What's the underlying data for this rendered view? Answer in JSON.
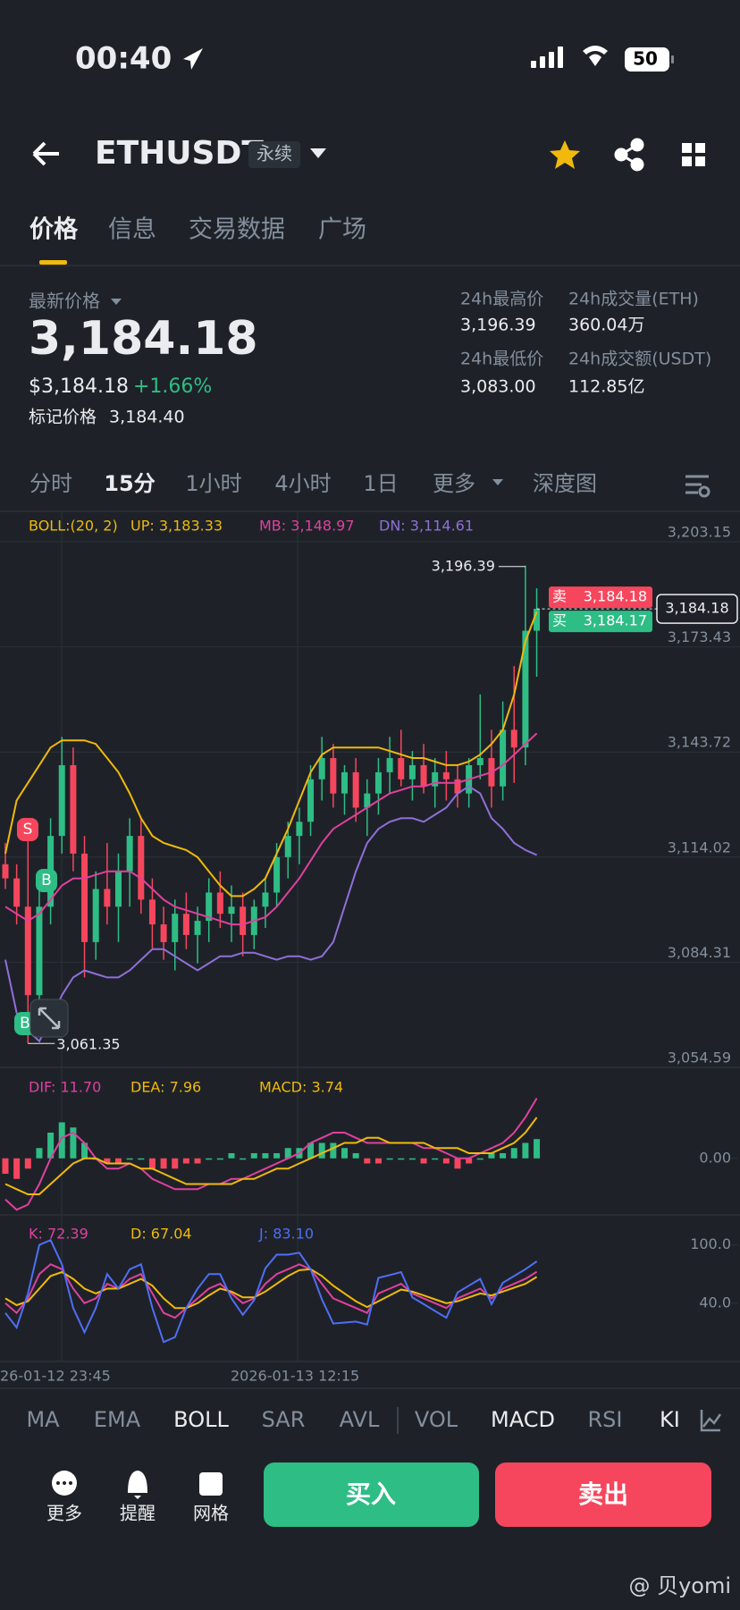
{
  "status": {
    "time": "00:40",
    "battery": "50"
  },
  "header": {
    "symbol": "ETHUSDT",
    "badge": "永续"
  },
  "tabs": [
    "价格",
    "信息",
    "交易数据",
    "广场"
  ],
  "price": {
    "label": "最新价格",
    "last": "3,184.18",
    "usd": "$3,184.18",
    "change": "+1.66%",
    "mark_label": "标记价格",
    "mark": "3,184.40"
  },
  "stats": [
    {
      "label": "24h最高价",
      "value": "3,196.39"
    },
    {
      "label": "24h成交量(ETH)",
      "value": "360.04万"
    },
    {
      "label": "24h最低价",
      "value": "3,083.00"
    },
    {
      "label": "24h成交额(USDT)",
      "value": "112.85亿"
    }
  ],
  "intervals": [
    "分时",
    "15分",
    "1小时",
    "4小时",
    "1日",
    "更多",
    "深度图"
  ],
  "chart_data": [
    {
      "type": "candlestick",
      "legend": "BOLL:(20, 2)",
      "up_color": "#2ebd85",
      "down_color": "#f6465d",
      "ylim": [
        3054.59,
        3203.15
      ],
      "yticks": [
        {
          "value": 3203.15,
          "label": "3,203.15"
        },
        {
          "value": 3173.43,
          "label": "3,173.43"
        },
        {
          "value": 3143.72,
          "label": "3,143.72"
        },
        {
          "value": 3114.02,
          "label": "3,114.02"
        },
        {
          "value": 3084.31,
          "label": "3,084.31"
        },
        {
          "value": 3054.59,
          "label": "3,054.59"
        }
      ],
      "candles": [
        [
          3112,
          3118,
          3105,
          3108
        ],
        [
          3108,
          3112,
          3095,
          3100
        ],
        [
          3100,
          3120,
          3061.35,
          3075
        ],
        [
          3075,
          3105,
          3070,
          3100
        ],
        [
          3100,
          3125,
          3095,
          3120
        ],
        [
          3120,
          3148,
          3115,
          3140
        ],
        [
          3140,
          3145,
          3110,
          3115
        ],
        [
          3115,
          3120,
          3080,
          3090
        ],
        [
          3090,
          3110,
          3085,
          3105
        ],
        [
          3105,
          3118,
          3095,
          3100
        ],
        [
          3100,
          3115,
          3090,
          3110
        ],
        [
          3110,
          3125,
          3100,
          3120
        ],
        [
          3120,
          3125,
          3098,
          3102
        ],
        [
          3102,
          3108,
          3088,
          3095
        ],
        [
          3095,
          3100,
          3085,
          3090
        ],
        [
          3090,
          3102,
          3082,
          3098
        ],
        [
          3098,
          3104,
          3088,
          3092
        ],
        [
          3092,
          3100,
          3084,
          3096
        ],
        [
          3096,
          3108,
          3090,
          3104
        ],
        [
          3104,
          3110,
          3094,
          3098
        ],
        [
          3098,
          3106,
          3090,
          3100
        ],
        [
          3100,
          3104,
          3086,
          3092
        ],
        [
          3092,
          3102,
          3088,
          3100
        ],
        [
          3100,
          3108,
          3094,
          3104
        ],
        [
          3104,
          3118,
          3100,
          3114
        ],
        [
          3114,
          3124,
          3108,
          3120
        ],
        [
          3120,
          3128,
          3112,
          3124
        ],
        [
          3124,
          3140,
          3120,
          3136
        ],
        [
          3136,
          3148,
          3130,
          3142
        ],
        [
          3142,
          3146,
          3128,
          3132
        ],
        [
          3132,
          3140,
          3126,
          3138
        ],
        [
          3138,
          3142,
          3124,
          3128
        ],
        [
          3128,
          3136,
          3120,
          3132
        ],
        [
          3132,
          3142,
          3126,
          3138
        ],
        [
          3138,
          3148,
          3132,
          3142
        ],
        [
          3142,
          3150,
          3134,
          3136
        ],
        [
          3136,
          3144,
          3130,
          3140
        ],
        [
          3140,
          3146,
          3132,
          3134
        ],
        [
          3134,
          3142,
          3128,
          3138
        ],
        [
          3138,
          3144,
          3130,
          3136
        ],
        [
          3136,
          3140,
          3128,
          3132
        ],
        [
          3132,
          3142,
          3128,
          3140
        ],
        [
          3140,
          3160,
          3136,
          3142
        ],
        [
          3142,
          3150,
          3128,
          3134
        ],
        [
          3134,
          3158,
          3130,
          3150
        ],
        [
          3150,
          3168,
          3135,
          3145
        ],
        [
          3145,
          3196.39,
          3140,
          3178
        ],
        [
          3178,
          3190,
          3165,
          3184.18
        ]
      ],
      "series": [
        {
          "label": "UP: 3,183.33",
          "color": "#f0b90b",
          "values": [
            3115,
            3130,
            3135,
            3140,
            3145,
            3147,
            3147,
            3147,
            3146,
            3142,
            3138,
            3132,
            3125,
            3120,
            3118,
            3117,
            3116,
            3114,
            3110,
            3106,
            3103,
            3103,
            3105,
            3108,
            3115,
            3122,
            3130,
            3138,
            3143,
            3145,
            3145,
            3145,
            3145,
            3145,
            3144,
            3143,
            3142,
            3142,
            3141,
            3140,
            3140,
            3141,
            3143,
            3146,
            3150,
            3160,
            3175,
            3183.33
          ]
        },
        {
          "label": "MB: 3,148.97",
          "color": "#e0409f",
          "values": [
            3100,
            3098,
            3096,
            3098,
            3102,
            3106,
            3108,
            3108,
            3109,
            3110,
            3110,
            3110,
            3108,
            3105,
            3102,
            3100,
            3099,
            3098,
            3097,
            3096,
            3095,
            3095,
            3096,
            3097,
            3100,
            3104,
            3108,
            3113,
            3118,
            3122,
            3124,
            3126,
            3128,
            3130,
            3132,
            3133,
            3134,
            3134,
            3135,
            3135,
            3135,
            3136,
            3137,
            3138,
            3140,
            3143,
            3146,
            3148.97
          ]
        },
        {
          "label": "DN: 3,114.61",
          "color": "#8f6fd8",
          "values": [
            3085,
            3070,
            3065,
            3062,
            3068,
            3075,
            3080,
            3082,
            3081,
            3080,
            3080,
            3082,
            3085,
            3088,
            3088,
            3086,
            3084,
            3082,
            3084,
            3086,
            3086,
            3087,
            3087,
            3086,
            3085,
            3086,
            3086,
            3085,
            3086,
            3090,
            3100,
            3110,
            3118,
            3122,
            3124,
            3125,
            3125,
            3124,
            3126,
            3128,
            3132,
            3134,
            3132,
            3125,
            3122,
            3118,
            3116,
            3114.61
          ]
        }
      ],
      "high_label": "3,196.39",
      "low_label": "3,061.35",
      "signals": [
        "S",
        "B",
        "B"
      ],
      "ask": {
        "label": "卖",
        "value": "3,184.18"
      },
      "bid": {
        "label": "买",
        "value": "3,184.17"
      },
      "current": "3,184.18"
    },
    {
      "type": "macd",
      "ylim": [
        -11,
        13
      ],
      "yticks": [
        {
          "value": 0,
          "label": "0.00"
        }
      ],
      "series": [
        {
          "label": "DIF: 11.70",
          "color": "#e0409f",
          "values": [
            -8,
            -10,
            -9,
            -5,
            0,
            4,
            5,
            3,
            0,
            -2,
            -2,
            -1,
            -2,
            -4,
            -5,
            -6,
            -6,
            -6,
            -5,
            -5,
            -4,
            -4,
            -3,
            -2,
            -1,
            0,
            1,
            3,
            4,
            5,
            5,
            4,
            3,
            3,
            3,
            3,
            3,
            2,
            2,
            1,
            0,
            0,
            1,
            2,
            3,
            5,
            8,
            11.7
          ]
        },
        {
          "label": "DEA: 7.96",
          "color": "#f0b90b",
          "values": [
            -5,
            -6,
            -7,
            -7,
            -5,
            -3,
            -1,
            0,
            0,
            -1,
            -1,
            -1,
            -2,
            -2,
            -3,
            -4,
            -5,
            -5,
            -5,
            -5,
            -5,
            -4,
            -4,
            -3,
            -2,
            -2,
            -1,
            0,
            1,
            2,
            3,
            3,
            4,
            4,
            3,
            3,
            3,
            3,
            2,
            2,
            2,
            1,
            1,
            1,
            2,
            3,
            5,
            7.96
          ]
        }
      ],
      "histogram": {
        "label": "MACD: 3.74",
        "color": "#f0b90b",
        "values": [
          -3,
          -4,
          -2,
          2,
          5,
          7,
          6,
          3,
          0,
          -1,
          -1,
          0,
          0,
          -2,
          -2,
          -2,
          -1,
          -1,
          0,
          0,
          1,
          0,
          1,
          1,
          1,
          2,
          2,
          3,
          3,
          3,
          2,
          1,
          -1,
          -1,
          0,
          0,
          0,
          -1,
          0,
          -1,
          -2,
          -1,
          0,
          1,
          1,
          2,
          3,
          3.74
        ]
      }
    },
    {
      "type": "line",
      "ylim": [
        -20,
        130
      ],
      "yticks": [
        {
          "value": 100,
          "label": "100.0"
        },
        {
          "value": 40,
          "label": "40.0"
        }
      ],
      "series": [
        {
          "label": "K: 72.39",
          "color": "#e0409f",
          "values": [
            40,
            30,
            45,
            70,
            80,
            75,
            55,
            40,
            45,
            60,
            55,
            65,
            70,
            50,
            30,
            25,
            35,
            45,
            55,
            60,
            50,
            40,
            45,
            60,
            70,
            75,
            80,
            75,
            60,
            45,
            40,
            35,
            30,
            50,
            55,
            60,
            50,
            45,
            40,
            35,
            45,
            50,
            55,
            45,
            55,
            60,
            65,
            72.39
          ]
        },
        {
          "label": "D: 67.04",
          "color": "#f0b90b",
          "values": [
            45,
            38,
            42,
            55,
            68,
            72,
            65,
            55,
            50,
            55,
            55,
            60,
            65,
            58,
            45,
            35,
            35,
            40,
            48,
            55,
            52,
            46,
            46,
            52,
            60,
            68,
            74,
            75,
            68,
            58,
            50,
            42,
            36,
            42,
            48,
            54,
            52,
            48,
            44,
            40,
            42,
            46,
            50,
            48,
            52,
            56,
            60,
            67.04
          ]
        },
        {
          "label": "J: 83.10",
          "color": "#4f6ef7",
          "values": [
            30,
            15,
            50,
            100,
            105,
            80,
            35,
            10,
            35,
            70,
            55,
            75,
            80,
            35,
            0,
            5,
            35,
            55,
            70,
            70,
            45,
            28,
            43,
            76,
            90,
            90,
            92,
            75,
            44,
            19,
            20,
            21,
            18,
            66,
            69,
            72,
            46,
            39,
            32,
            25,
            51,
            58,
            65,
            39,
            61,
            68,
            75,
            83.1
          ]
        }
      ],
      "x_labels": [
        "26-01-12 23:45",
        "2026-01-13 12:15"
      ]
    }
  ],
  "indicators": [
    "MA",
    "EMA",
    "BOLL",
    "SAR",
    "AVL",
    "VOL",
    "MACD",
    "RSI",
    "KI"
  ],
  "actions": {
    "more": "更多",
    "alert": "提醒",
    "grid": "网格",
    "buy": "买入",
    "sell": "卖出"
  },
  "watermark": "@ 贝yomi"
}
